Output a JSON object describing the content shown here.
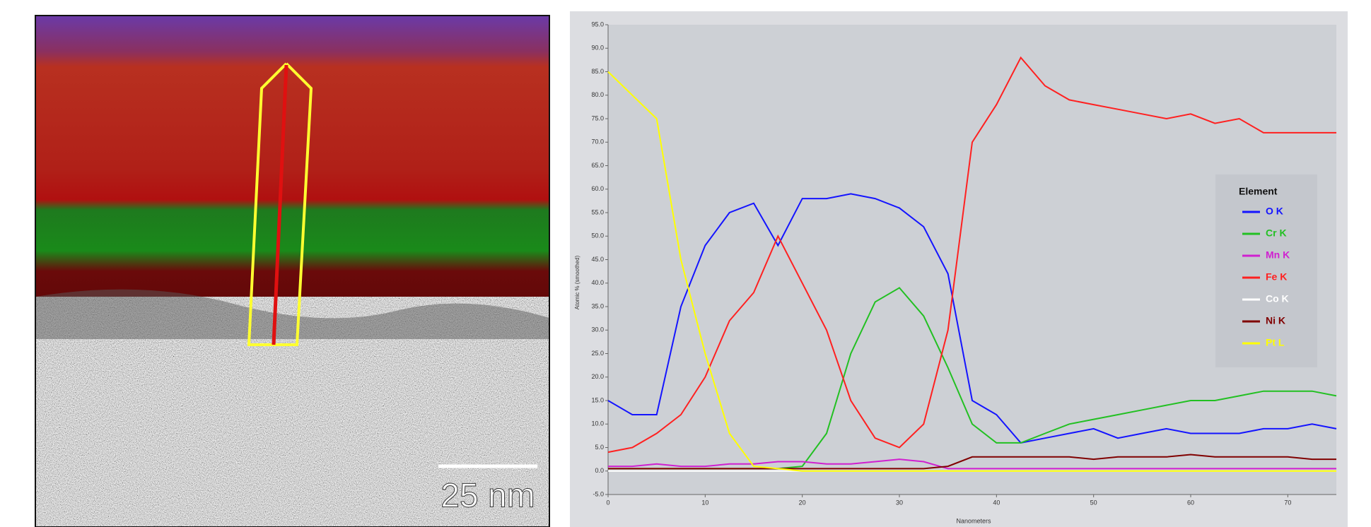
{
  "micrograph": {
    "scale_bar": "25 nm"
  },
  "chart_data": {
    "type": "line",
    "x_label": "Nanometers",
    "y_label": "Atomic % (smoothed)",
    "legend_title": "Element",
    "legend": "right",
    "x": [
      0,
      2.5,
      5,
      7.5,
      10,
      12.5,
      15,
      17.5,
      20,
      22.5,
      25,
      27.5,
      30,
      32.5,
      35,
      37.5,
      40,
      42.5,
      45,
      47.5,
      50,
      52.5,
      55,
      57.5,
      60,
      62.5,
      65,
      67.5,
      70,
      72.5,
      75
    ],
    "series": [
      {
        "name": "O K",
        "color": "#1414ff",
        "values": [
          15,
          12,
          12,
          35,
          48,
          55,
          57,
          48,
          58,
          58,
          59,
          58,
          56,
          52,
          42,
          15,
          12,
          6,
          7,
          8,
          9,
          7,
          8,
          9,
          8,
          8,
          8,
          9,
          9,
          10,
          9
        ]
      },
      {
        "name": "Cr K",
        "color": "#22c022",
        "values": [
          0.5,
          0.5,
          0.5,
          0.5,
          0.5,
          0.5,
          0.5,
          0.5,
          1,
          8,
          25,
          36,
          39,
          33,
          22,
          10,
          6,
          6,
          8,
          10,
          11,
          12,
          13,
          14,
          15,
          15,
          16,
          17,
          17,
          17,
          16
        ]
      },
      {
        "name": "Mn K",
        "color": "#d020d0",
        "values": [
          1,
          1,
          1.5,
          1,
          1,
          1.5,
          1.5,
          2,
          2,
          1.5,
          1.5,
          2,
          2.5,
          2,
          0.5,
          0.5,
          0.5,
          0.5,
          0.5,
          0.5,
          0.5,
          0.5,
          0.5,
          0.5,
          0.5,
          0.5,
          0.5,
          0.5,
          0.5,
          0.5,
          0.5
        ]
      },
      {
        "name": "Fe K",
        "color": "#ff2020",
        "values": [
          4,
          5,
          8,
          12,
          20,
          32,
          38,
          50,
          40,
          30,
          15,
          7,
          5,
          10,
          30,
          70,
          78,
          88,
          82,
          79,
          78,
          77,
          76,
          75,
          76,
          74,
          75,
          72,
          72,
          72,
          72
        ]
      },
      {
        "name": "Co K",
        "color": "#ffffff",
        "values": [
          0,
          0,
          0,
          0,
          0,
          0,
          0,
          0,
          0,
          0,
          0,
          0,
          0,
          0,
          0,
          0,
          0,
          0,
          0,
          0,
          0,
          0,
          0,
          0,
          0,
          0,
          0,
          0,
          0,
          0,
          0
        ]
      },
      {
        "name": "Ni K",
        "color": "#800000",
        "values": [
          0.5,
          0.5,
          0.5,
          0.5,
          0.5,
          0.5,
          0.5,
          0.5,
          0.5,
          0.5,
          0.5,
          0.5,
          0.5,
          0.5,
          1,
          3,
          3,
          3,
          3,
          3,
          2.5,
          3,
          3,
          3,
          3.5,
          3,
          3,
          3,
          3,
          2.5,
          2.5
        ]
      },
      {
        "name": "Pt L",
        "color": "#ffff00",
        "values": [
          85,
          80,
          75,
          45,
          25,
          8,
          1,
          0.5,
          0,
          0,
          0,
          0,
          0,
          0,
          0,
          0,
          0,
          0,
          0,
          0,
          0,
          0,
          0,
          0,
          0,
          0,
          0,
          0,
          0,
          0,
          0
        ]
      }
    ],
    "xlim": [
      0,
      75
    ],
    "xticks": [
      0,
      10,
      20,
      30,
      40,
      50,
      60,
      70
    ],
    "ylim": [
      -5,
      95
    ],
    "yticks": [
      {
        "value": -5,
        "label": "-5.0"
      },
      {
        "value": 0,
        "label": "0.0"
      },
      {
        "value": 5,
        "label": "5.0"
      },
      {
        "value": 10,
        "label": "10.0"
      },
      {
        "value": 15,
        "label": "15.0"
      },
      {
        "value": 20,
        "label": "20.0"
      },
      {
        "value": 25,
        "label": "25.0"
      },
      {
        "value": 30,
        "label": "30.0"
      },
      {
        "value": 35,
        "label": "35.0"
      },
      {
        "value": 40,
        "label": "40.0"
      },
      {
        "value": 45,
        "label": "45.0"
      },
      {
        "value": 50,
        "label": "50.0"
      },
      {
        "value": 55,
        "label": "55.0"
      },
      {
        "value": 60,
        "label": "60.0"
      },
      {
        "value": 65,
        "label": "65.0"
      },
      {
        "value": 70,
        "label": "70.0"
      },
      {
        "value": 75,
        "label": "75.0"
      },
      {
        "value": 80,
        "label": "80.0"
      },
      {
        "value": 85,
        "label": "85.0"
      },
      {
        "value": 90,
        "label": "90.0"
      },
      {
        "value": 95,
        "label": "95.0"
      }
    ],
    "grid": false
  }
}
